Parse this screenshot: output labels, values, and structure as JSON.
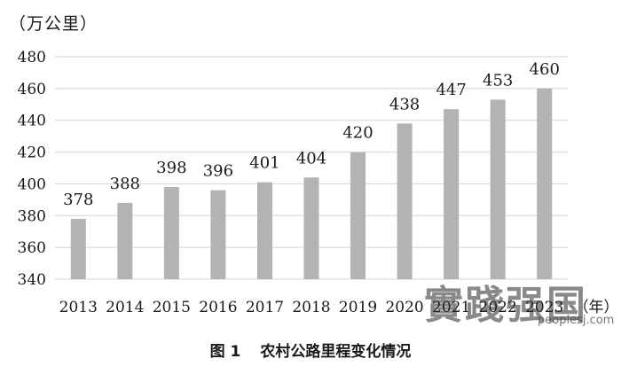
{
  "unit_label": "（万公里）",
  "caption": {
    "fig": "图 1",
    "title": "农村公路里程变化情况"
  },
  "watermark": {
    "text": "實踐强国",
    "url": "peoplesj.com"
  },
  "chart_data": {
    "type": "bar",
    "title": "农村公路里程变化情况",
    "ylabel": "万公里",
    "xlabel": "年",
    "categories": [
      "2013",
      "2014",
      "2015",
      "2016",
      "2017",
      "2018",
      "2019",
      "2020",
      "2021",
      "2022",
      "2023"
    ],
    "tick_labels": [
      "2013",
      "2014",
      "2015",
      "2016",
      "2017",
      "2018",
      "2019",
      "2020",
      "2021",
      "2022",
      "2023"
    ],
    "values": [
      378,
      388,
      398,
      396,
      401,
      404,
      420,
      438,
      447,
      453,
      460
    ],
    "ylim": [
      340,
      480
    ],
    "yticks": [
      340,
      360,
      380,
      400,
      420,
      440,
      460,
      480
    ],
    "grid": true,
    "bar_color": "#b3b3b3",
    "grid_color": "#d4d4d4"
  }
}
